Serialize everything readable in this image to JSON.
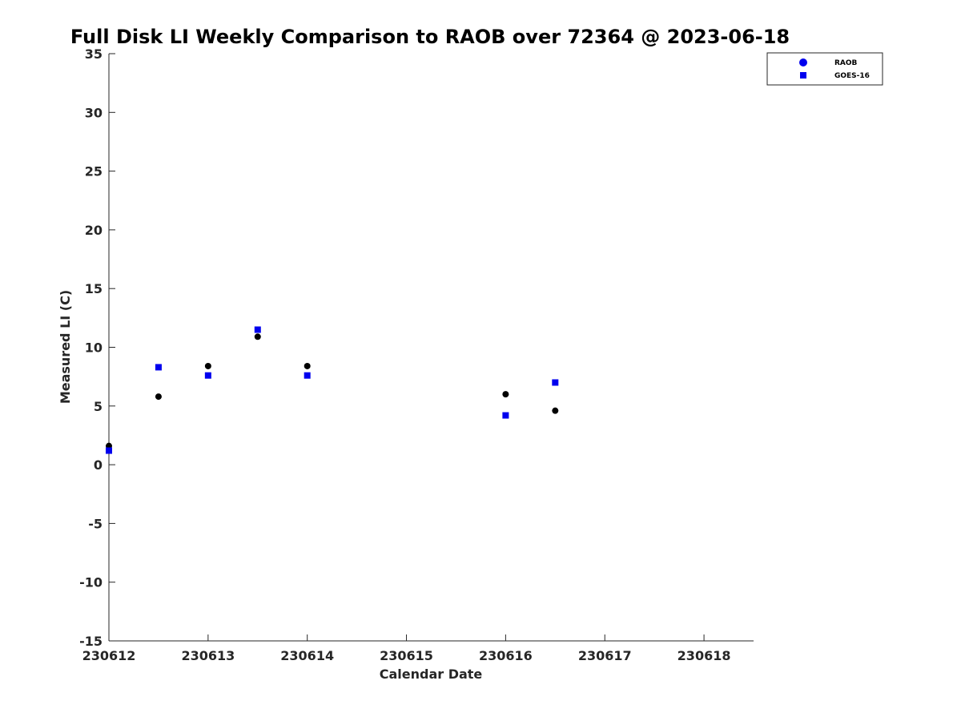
{
  "chart_data": {
    "type": "scatter",
    "title": "Full Disk LI Weekly Comparison to RAOB over 72364 @ 2023-06-18",
    "xlabel": "Calendar Date",
    "ylabel": "Measured LI (C)",
    "xlim": [
      0,
      6.5
    ],
    "ylim": [
      -15,
      35
    ],
    "x_ticks": [
      0,
      1,
      2,
      3,
      4,
      5,
      6
    ],
    "x_tick_labels": [
      "230612",
      "230613",
      "230614",
      "230615",
      "230616",
      "230617",
      "230618"
    ],
    "y_ticks": [
      -15,
      -10,
      -5,
      0,
      5,
      10,
      15,
      20,
      25,
      30,
      35
    ],
    "y_tick_labels": [
      "-15",
      "-10",
      "-5",
      "0",
      "5",
      "10",
      "15",
      "20",
      "25",
      "30",
      "35"
    ],
    "legend": {
      "position": "top-right",
      "entries": [
        "RAOB",
        "GOES-16"
      ]
    },
    "series": [
      {
        "name": "RAOB",
        "marker": "circle",
        "color": "#000000",
        "legend_color": "#0000ee",
        "points": [
          [
            0,
            1.6
          ],
          [
            0.5,
            5.8
          ],
          [
            1,
            8.4
          ],
          [
            1.5,
            10.9
          ],
          [
            2,
            8.4
          ],
          [
            4,
            6.0
          ],
          [
            4.5,
            4.6
          ]
        ]
      },
      {
        "name": "GOES-16",
        "marker": "square",
        "color": "#0000ee",
        "legend_color": "#0000ee",
        "points": [
          [
            0,
            1.2
          ],
          [
            0.5,
            8.3
          ],
          [
            1,
            7.6
          ],
          [
            1.5,
            11.5
          ],
          [
            2,
            7.6
          ],
          [
            4,
            4.2
          ],
          [
            4.5,
            7.0
          ]
        ]
      }
    ]
  }
}
